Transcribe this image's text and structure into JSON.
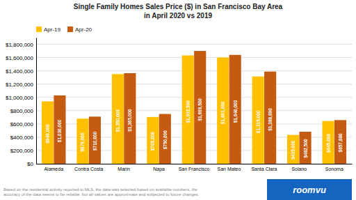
{
  "chart_data": {
    "type": "bar",
    "title": "Single Family Homes Sales Price ($) in San Francisco Bay Area",
    "subtitle": "in April 2020 vs 2019",
    "categories": [
      "Alameda",
      "Contra Costa",
      "Marin",
      "Napa",
      "San Francisco",
      "San Mateo",
      "Santa Clara",
      "Solano",
      "Sonoma"
    ],
    "series": [
      {
        "name": "Apr-19",
        "color": "#FFC000",
        "values": [
          940000,
          679000,
          1350000,
          705000,
          1632500,
          1601000,
          1315000,
          435000,
          645000
        ],
        "value_labels": [
          "$940,000",
          "$679,000",
          "$1,350,000",
          "$705,000",
          "$1,632,500",
          "$1,601,000",
          "$1,315,000",
          "$435,000",
          "$645,000"
        ]
      },
      {
        "name": "Apr-20",
        "color": "#C55A11",
        "values": [
          1030000,
          710000,
          1365000,
          750000,
          1699500,
          1640000,
          1388890,
          482500,
          657880
        ],
        "value_labels": [
          "$1,030,000",
          "$710,000",
          "$1,365,000",
          "$750,000",
          "$1,699,500",
          "$1,640,000",
          "$1,388,890",
          "$482,500",
          "$657,880"
        ]
      }
    ],
    "ylim": [
      0,
      1900000
    ],
    "yticks": [
      {
        "value": 0,
        "label": "$0"
      },
      {
        "value": 200000,
        "label": "$200,000"
      },
      {
        "value": 400000,
        "label": "$400,000"
      },
      {
        "value": 600000,
        "label": "$600,000"
      },
      {
        "value": 800000,
        "label": "$800,000"
      },
      {
        "value": 1000000,
        "label": "$1,000,000"
      },
      {
        "value": 1200000,
        "label": "$1,200,000"
      },
      {
        "value": 1400000,
        "label": "$1,400,000"
      },
      {
        "value": 1600000,
        "label": "$1,600,000"
      },
      {
        "value": 1800000,
        "label": "$1,800,000"
      }
    ],
    "grid": true,
    "legend": "upper left",
    "data_labels": true,
    "annotations": [
      "Based on the residential activity reported to MLS, the data was selected based on available numbers, the\naccuracy of the data seems to be reliable, but all values are approximate and subjected to future changes.",
      "roomvu"
    ]
  }
}
